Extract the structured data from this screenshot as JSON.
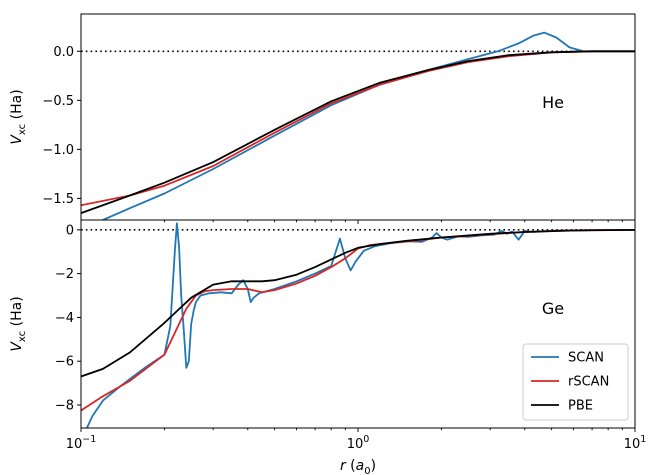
{
  "chart_data": [
    {
      "panel": "top",
      "type": "line",
      "annotation": "He",
      "ylabel_main": "V",
      "ylabel_sub": "xc",
      "ylabel_unit": " (Ha)",
      "xscale": "log",
      "xlim": [
        0.1,
        10
      ],
      "ylim": [
        -1.72,
        0.38
      ],
      "yticks": [
        {
          "value": 0.0,
          "label": "0.0"
        },
        {
          "value": -0.5,
          "label": "−0.5"
        },
        {
          "value": -1.0,
          "label": "−1.0"
        },
        {
          "value": -1.5,
          "label": "−1.5"
        }
      ],
      "reference_line": {
        "y": 0,
        "style": "dotted"
      },
      "series": [
        {
          "name": "SCAN",
          "color": "#1f77b4",
          "x": [
            0.12,
            0.15,
            0.2,
            0.3,
            0.5,
            0.8,
            1.2,
            1.8,
            2.5,
            3.2,
            3.8,
            4.3,
            4.7,
            5.2,
            5.8,
            6.5,
            8,
            10
          ],
          "y": [
            -1.72,
            -1.6,
            -1.45,
            -1.2,
            -0.86,
            -0.55,
            -0.34,
            -0.19,
            -0.08,
            0.0,
            0.08,
            0.16,
            0.19,
            0.14,
            0.04,
            0.0,
            0.0,
            0.0
          ]
        },
        {
          "name": "rSCAN",
          "color": "#d62728",
          "x": [
            0.1,
            0.15,
            0.2,
            0.3,
            0.5,
            0.8,
            1.2,
            1.8,
            2.5,
            3.5,
            5,
            7,
            10
          ],
          "y": [
            -1.57,
            -1.47,
            -1.37,
            -1.17,
            -0.83,
            -0.53,
            -0.34,
            -0.2,
            -0.11,
            -0.05,
            -0.01,
            0.0,
            0.0
          ]
        },
        {
          "name": "PBE",
          "color": "#000000",
          "x": [
            0.1,
            0.15,
            0.2,
            0.3,
            0.5,
            0.8,
            1.2,
            1.8,
            2.5,
            3.5,
            5,
            7,
            10
          ],
          "y": [
            -1.65,
            -1.47,
            -1.34,
            -1.13,
            -0.8,
            -0.51,
            -0.32,
            -0.19,
            -0.1,
            -0.04,
            -0.01,
            0.0,
            0.0
          ]
        }
      ]
    },
    {
      "panel": "bottom",
      "type": "line",
      "annotation": "Ge",
      "ylabel_main": "V",
      "ylabel_sub": "xc",
      "ylabel_unit": " (Ha)",
      "xlabel_main": "r",
      "xlabel_unit": "a",
      "xlabel_unit_sub": "0",
      "xscale": "log",
      "xlim": [
        0.1,
        10
      ],
      "ylim": [
        -9.05,
        0.45
      ],
      "yticks": [
        {
          "value": 0,
          "label": "0"
        },
        {
          "value": -2,
          "label": "−2"
        },
        {
          "value": -4,
          "label": "−4"
        },
        {
          "value": -6,
          "label": "−6"
        },
        {
          "value": -8,
          "label": "−8"
        }
      ],
      "xticks": [
        {
          "value": 0.1,
          "base": "10",
          "exp": "−1"
        },
        {
          "value": 1,
          "base": "10",
          "exp": "0"
        },
        {
          "value": 10,
          "base": "10",
          "exp": "1"
        }
      ],
      "reference_line": {
        "y": 0,
        "style": "dotted"
      },
      "legend_position": "lower-right",
      "series": [
        {
          "name": "SCAN",
          "color": "#1f77b4",
          "x": [
            0.105,
            0.11,
            0.12,
            0.14,
            0.17,
            0.2,
            0.21,
            0.218,
            0.222,
            0.226,
            0.23,
            0.235,
            0.24,
            0.245,
            0.25,
            0.255,
            0.26,
            0.27,
            0.29,
            0.32,
            0.35,
            0.37,
            0.385,
            0.4,
            0.41,
            0.42,
            0.44,
            0.5,
            0.6,
            0.7,
            0.8,
            0.86,
            0.9,
            0.94,
            0.98,
            1.05,
            1.15,
            1.3,
            1.5,
            1.7,
            1.85,
            1.92,
            2.0,
            2.1,
            2.3,
            2.5,
            2.8,
            3.1,
            3.3,
            3.45,
            3.6,
            3.8,
            4.0,
            4.3,
            5,
            7,
            10
          ],
          "y": [
            -9.05,
            -8.5,
            -7.8,
            -7.1,
            -6.3,
            -5.7,
            -4.4,
            -1.0,
            0.3,
            -0.8,
            -3.0,
            -4.6,
            -6.3,
            -6.0,
            -4.3,
            -3.7,
            -3.3,
            -3.0,
            -2.9,
            -2.85,
            -2.9,
            -2.5,
            -2.3,
            -2.7,
            -3.3,
            -3.1,
            -2.9,
            -2.7,
            -2.35,
            -2.0,
            -1.65,
            -0.4,
            -1.3,
            -1.85,
            -1.45,
            -0.95,
            -0.75,
            -0.62,
            -0.52,
            -0.55,
            -0.35,
            -0.15,
            -0.35,
            -0.45,
            -0.3,
            -0.32,
            -0.25,
            -0.22,
            -0.05,
            -0.18,
            -0.08,
            -0.45,
            -0.05,
            -0.1,
            -0.04,
            -0.01,
            0.0
          ]
        },
        {
          "name": "rSCAN",
          "color": "#d62728",
          "x": [
            0.1,
            0.12,
            0.15,
            0.2,
            0.22,
            0.24,
            0.26,
            0.28,
            0.3,
            0.35,
            0.4,
            0.45,
            0.5,
            0.6,
            0.7,
            0.8,
            0.9,
            1.0,
            1.1,
            1.3,
            1.6,
            2.0,
            2.5,
            3.0,
            4.0,
            5.0,
            7.0,
            10.0
          ],
          "y": [
            -8.25,
            -7.6,
            -6.9,
            -5.7,
            -4.6,
            -3.6,
            -3.0,
            -2.8,
            -2.75,
            -2.7,
            -2.7,
            -2.85,
            -2.75,
            -2.45,
            -2.1,
            -1.7,
            -1.3,
            -0.85,
            -0.7,
            -0.6,
            -0.5,
            -0.35,
            -0.28,
            -0.2,
            -0.1,
            -0.05,
            -0.01,
            0.0
          ]
        },
        {
          "name": "PBE",
          "color": "#000000",
          "x": [
            0.1,
            0.12,
            0.15,
            0.2,
            0.25,
            0.3,
            0.35,
            0.4,
            0.45,
            0.5,
            0.6,
            0.7,
            0.8,
            0.9,
            1.0,
            1.2,
            1.5,
            2.0,
            3.0,
            4.0,
            6.0,
            10.0
          ],
          "y": [
            -6.7,
            -6.35,
            -5.6,
            -4.25,
            -3.1,
            -2.5,
            -2.35,
            -2.35,
            -2.35,
            -2.3,
            -2.05,
            -1.7,
            -1.35,
            -1.05,
            -0.82,
            -0.65,
            -0.5,
            -0.35,
            -0.18,
            -0.1,
            -0.03,
            0.0
          ]
        }
      ]
    }
  ]
}
